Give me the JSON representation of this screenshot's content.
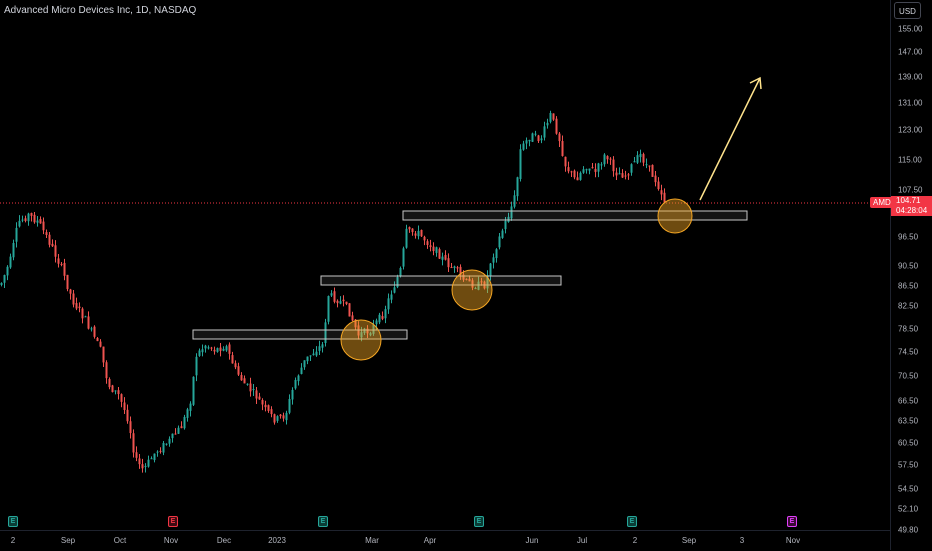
{
  "header": {
    "symbol_title": "Advanced Micro Devices Inc, 1D, NASDAQ",
    "currency": "USD"
  },
  "price_axis": {
    "ticks": [
      "155.00",
      "147.00",
      "139.00",
      "131.00",
      "123.00",
      "115.00",
      "107.50",
      "96.50",
      "90.50",
      "86.50",
      "82.50",
      "78.50",
      "74.50",
      "70.50",
      "66.50",
      "63.50",
      "60.50",
      "57.50",
      "54.50",
      "52.10",
      "49.80"
    ],
    "ticker": "AMD",
    "last_price": "104.71",
    "countdown": "04:28:04"
  },
  "time_axis": {
    "ticks": [
      "2",
      "Sep",
      "Oct",
      "Nov",
      "Dec",
      "2023",
      "Mar",
      "Apr",
      "Jun",
      "Jul",
      "2",
      "Sep",
      "3",
      "Nov"
    ]
  },
  "event_markers": [
    {
      "label": "E",
      "kind": "earnings"
    },
    {
      "label": "E",
      "kind": "earnings"
    },
    {
      "label": "E",
      "kind": "earnings"
    },
    {
      "label": "E",
      "kind": "earnings"
    },
    {
      "label": "E",
      "kind": "earnings"
    },
    {
      "label": "E",
      "kind": "earnings-upcoming"
    }
  ],
  "colors": {
    "up": "#26a69a",
    "down": "#ef5350",
    "zone": "#c8c8c8",
    "circle": "#f5a623",
    "arrow": "#ffe38c",
    "price_line": "#f23645"
  },
  "annotations": {
    "zones": [
      "support-zone-1",
      "support-zone-2",
      "support-zone-3"
    ],
    "circles": [
      "retest-circle-1",
      "retest-circle-2",
      "retest-circle-3"
    ],
    "arrow": "projection-arrow"
  }
}
